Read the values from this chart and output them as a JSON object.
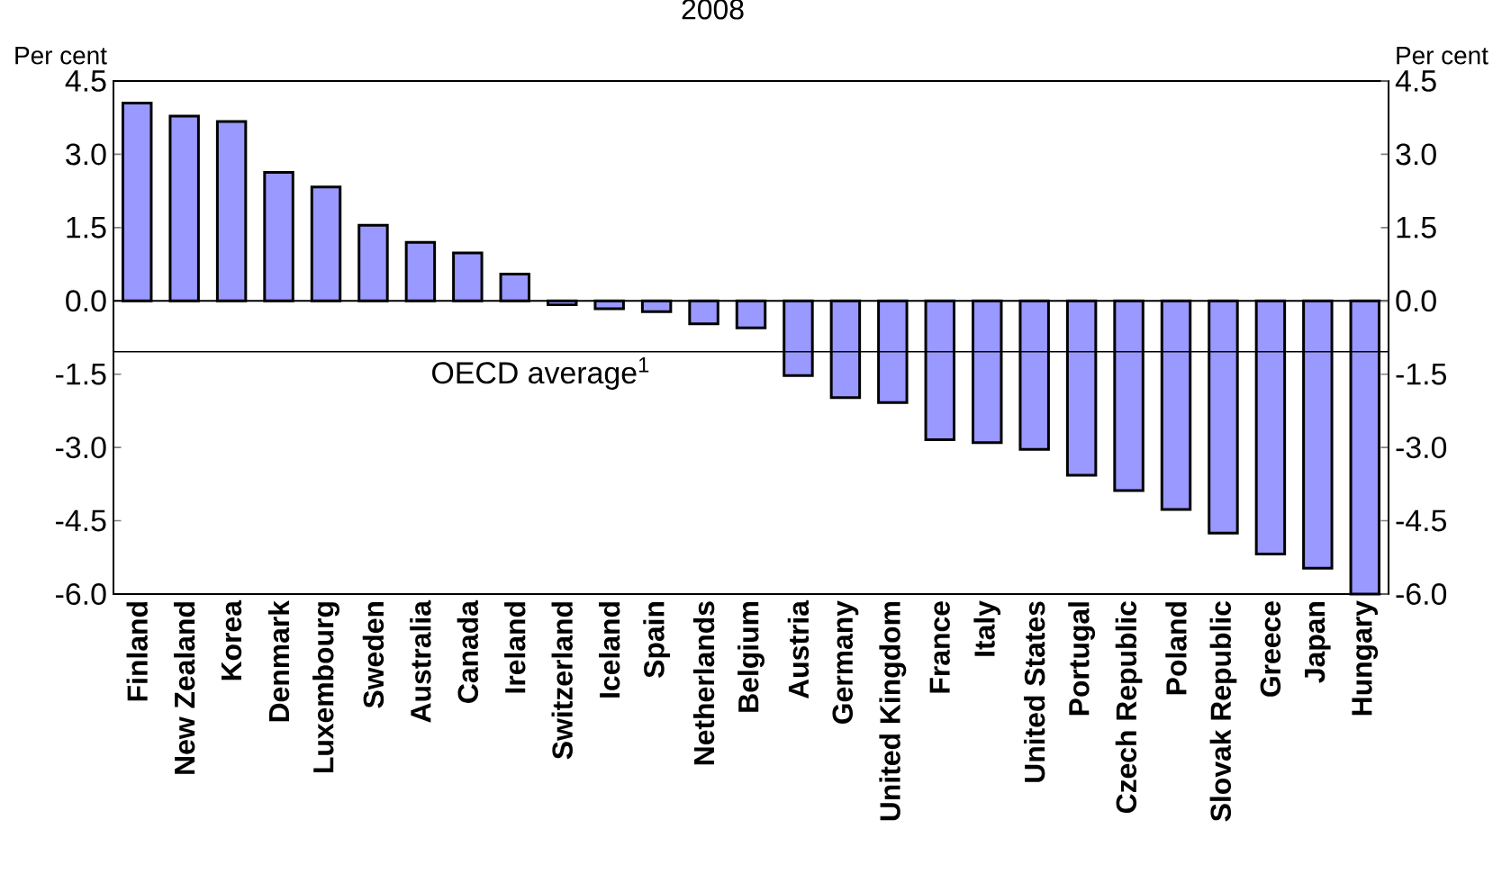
{
  "chart_data": {
    "type": "bar",
    "title": "2008",
    "ylabel": "Per cent",
    "y2label": "Per cent",
    "categories": [
      "Finland",
      "New Zealand",
      "Korea",
      "Denmark",
      "Luxembourg",
      "Sweden",
      "Australia",
      "Canada",
      "Ireland",
      "Switzerland",
      "Iceland",
      "Spain",
      "Netherlands",
      "Belgium",
      "Austria",
      "Germany",
      "United Kingdom",
      "France",
      "Italy",
      "United States",
      "Portugal",
      "Czech Republic",
      "Poland",
      "Slovak Republic",
      "Greece",
      "Japan",
      "Hungary"
    ],
    "values": [
      4.05,
      3.78,
      3.67,
      2.63,
      2.33,
      1.55,
      1.2,
      0.98,
      0.55,
      -0.08,
      -0.16,
      -0.22,
      -0.47,
      -0.55,
      -1.53,
      -1.98,
      -2.08,
      -2.84,
      -2.9,
      -3.04,
      -3.57,
      -3.88,
      -4.27,
      -4.75,
      -5.18,
      -5.47,
      -6.0
    ],
    "color": "#9999ff",
    "ylim": [
      -6.0,
      4.5
    ],
    "yticks": [
      {
        "value": -6.0,
        "label": "-6.0"
      },
      -4.5,
      {
        "value": -3.0,
        "label": "-3.0"
      },
      -1.5,
      {
        "value": 0,
        "label": "0.0"
      },
      1.5,
      {
        "value": 3.0,
        "label": "3.0"
      },
      4.5
    ],
    "y2lim": [
      -6.0,
      4.5
    ],
    "y2ticks": [
      {
        "value": -6.0,
        "label": "-6.0"
      },
      -4.5,
      {
        "value": -3.0,
        "label": "-3.0"
      },
      -1.5,
      {
        "value": 0,
        "label": "0.0"
      },
      1.5,
      {
        "value": 3.0,
        "label": "3.0"
      },
      4.5
    ],
    "ref_lines": [
      {
        "axis": "y",
        "value": -1.04,
        "label": "OECD average$^{1}$",
        "color": "#000000"
      }
    ]
  }
}
